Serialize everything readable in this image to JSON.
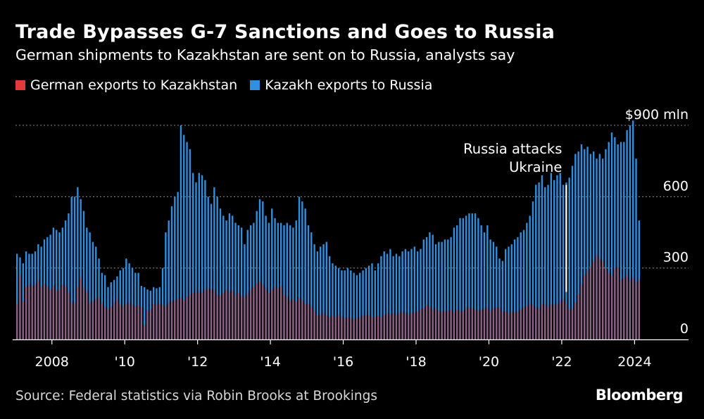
{
  "header": {
    "title": "Trade Bypasses G-7 Sanctions and Goes to Russia",
    "subtitle": "German shipments to Kazakhstan are sent on to Russia, analysts say"
  },
  "legend": {
    "german": "German exports to Kazakhstan",
    "kazakh": "Kazakh exports to Russia"
  },
  "footer": {
    "source": "Source: Federal statistics via Robin Brooks at Brookings",
    "brand": "Bloomberg"
  },
  "colors": {
    "german": "#e23a3a",
    "kazakh": "#2f8fe0",
    "background": "#000000",
    "grid": "#8a8a8a"
  },
  "chart_data": {
    "type": "bar",
    "frequency": "monthly",
    "x_start": "2007-01",
    "x_end": "2024-02",
    "ylim": [
      0,
      900
    ],
    "ytick_values": [
      0,
      300,
      600,
      900
    ],
    "ytick_labels": [
      "0",
      "300",
      "600",
      "$900 mln"
    ],
    "xtick_values": [
      2008,
      2010,
      2012,
      2014,
      2016,
      2018,
      2020,
      2022,
      2024
    ],
    "xtick_labels": [
      "2008",
      "'10",
      "'12",
      "'14",
      "'16",
      "'18",
      "'20",
      "'22",
      "2024"
    ],
    "grid": true,
    "legend_position": "top-left",
    "annotation": {
      "text_lines": [
        "Russia attacks",
        "Ukraine"
      ],
      "date": "2022-02"
    },
    "series": [
      {
        "name": "German exports to Kazakhstan",
        "yearly_values": {
          "2007": [
            150,
            270,
            160,
            220,
            230,
            225,
            230,
            250,
            220,
            235,
            225,
            210
          ],
          "2008": [
            225,
            205,
            210,
            230,
            225,
            200,
            155,
            155,
            220,
            260,
            220,
            200
          ],
          "2009": [
            155,
            160,
            170,
            180,
            155,
            135,
            130,
            140,
            155,
            170,
            150,
            140
          ],
          "2010": [
            150,
            155,
            145,
            140,
            145,
            135,
            60,
            120,
            125,
            150,
            145,
            150
          ],
          "2011": [
            145,
            140,
            155,
            160,
            165,
            170,
            175,
            165,
            180,
            190,
            195,
            200
          ],
          "2012": [
            200,
            195,
            210,
            215,
            210,
            205,
            190,
            185,
            195,
            210,
            200,
            205
          ],
          "2013": [
            185,
            195,
            185,
            180,
            190,
            210,
            220,
            235,
            245,
            230,
            215,
            195
          ],
          "2014": [
            210,
            220,
            215,
            225,
            190,
            180,
            165,
            170,
            160,
            175,
            165,
            150
          ],
          "2015": [
            150,
            140,
            120,
            100,
            105,
            110,
            100,
            95,
            100,
            95,
            105,
            95
          ],
          "2016": [
            90,
            95,
            90,
            85,
            90,
            95,
            100,
            105,
            100,
            95,
            95,
            100
          ],
          "2017": [
            95,
            100,
            110,
            105,
            110,
            105,
            110,
            115,
            110,
            105,
            110,
            115
          ],
          "2018": [
            120,
            125,
            130,
            145,
            140,
            125,
            130,
            120,
            115,
            120,
            120,
            125
          ],
          "2019": [
            115,
            125,
            120,
            120,
            130,
            135,
            130,
            125,
            120,
            125,
            130,
            135
          ],
          "2020": [
            120,
            130,
            135,
            135,
            115,
            120,
            110,
            115,
            115,
            115,
            125,
            135
          ],
          "2021": [
            140,
            150,
            145,
            135,
            130,
            150,
            145,
            140,
            150,
            145,
            150,
            160
          ],
          "2022": [
            170,
            150,
            125,
            130,
            155,
            190,
            230,
            270,
            285,
            305,
            330,
            355
          ],
          "2023": [
            340,
            330,
            300,
            280,
            270,
            300,
            305,
            250,
            260,
            270,
            250,
            260
          ],
          "2024": [
            240,
            250
          ]
        }
      },
      {
        "name": "Kazakh exports to Russia",
        "yearly_values": {
          "2007": [
            360,
            345,
            320,
            370,
            360,
            360,
            370,
            400,
            390,
            420,
            430,
            440
          ],
          "2008": [
            470,
            460,
            450,
            470,
            500,
            530,
            600,
            600,
            640,
            590,
            540,
            470
          ],
          "2009": [
            450,
            410,
            390,
            340,
            280,
            270,
            220,
            240,
            250,
            265,
            290,
            300
          ],
          "2010": [
            340,
            320,
            300,
            280,
            280,
            225,
            220,
            210,
            205,
            220,
            215,
            220
          ],
          "2011": [
            300,
            450,
            500,
            560,
            600,
            620,
            900,
            860,
            830,
            800,
            700,
            660
          ],
          "2012": [
            700,
            690,
            670,
            600,
            570,
            640,
            600,
            550,
            520,
            500,
            530,
            520
          ],
          "2013": [
            490,
            480,
            470,
            400,
            460,
            480,
            490,
            540,
            590,
            580,
            520,
            490
          ],
          "2014": [
            550,
            510,
            490,
            490,
            480,
            490,
            480,
            470,
            500,
            600,
            580,
            550
          ],
          "2015": [
            480,
            450,
            400,
            370,
            390,
            400,
            410,
            350,
            320,
            310,
            300,
            290
          ],
          "2016": [
            290,
            300,
            290,
            280,
            270,
            280,
            290,
            300,
            310,
            320,
            290,
            320
          ],
          "2017": [
            350,
            370,
            360,
            380,
            350,
            360,
            350,
            370,
            380,
            370,
            380,
            390
          ],
          "2018": [
            370,
            380,
            420,
            430,
            450,
            440,
            400,
            410,
            410,
            420,
            420,
            430
          ],
          "2019": [
            470,
            480,
            510,
            510,
            520,
            530,
            530,
            530,
            510,
            480,
            450,
            480
          ],
          "2020": [
            420,
            410,
            390,
            340,
            330,
            380,
            390,
            400,
            420,
            430,
            450,
            460
          ],
          "2021": [
            490,
            520,
            580,
            650,
            660,
            690,
            640,
            650,
            700,
            670,
            690,
            700
          ],
          "2022": [
            650,
            660,
            680,
            730,
            780,
            790,
            820,
            800,
            810,
            780,
            790,
            760
          ],
          "2023": [
            780,
            760,
            800,
            830,
            870,
            850,
            820,
            830,
            830,
            880,
            900,
            920
          ],
          "2024": [
            760,
            500
          ]
        }
      }
    ]
  }
}
